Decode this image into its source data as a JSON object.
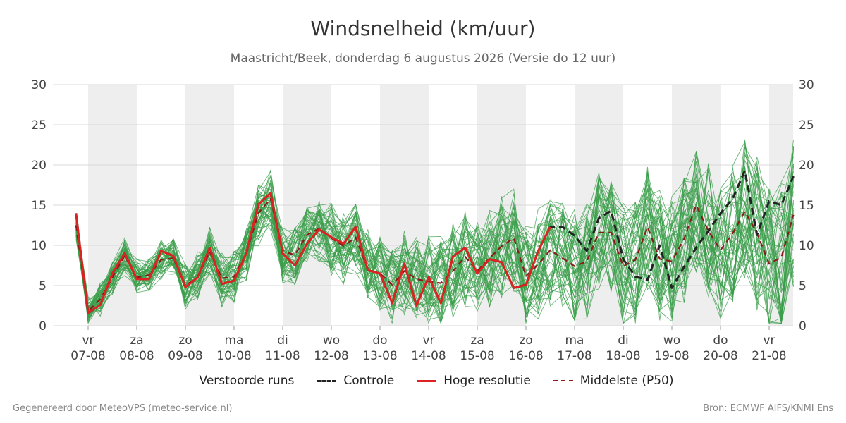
{
  "chart_data": {
    "type": "line",
    "title": "Windsnelheid (km/uur)",
    "subtitle": "Maastricht/Beek, donderdag  6 augustus 2026 (Versie do 12 uur)",
    "ylim": [
      0,
      30
    ],
    "yticks": [
      0,
      5,
      10,
      15,
      20,
      25,
      30
    ],
    "grid": true,
    "days": [
      {
        "day": "vr",
        "date": "07-08"
      },
      {
        "day": "za",
        "date": "08-08"
      },
      {
        "day": "zo",
        "date": "09-08"
      },
      {
        "day": "ma",
        "date": "10-08"
      },
      {
        "day": "di",
        "date": "11-08"
      },
      {
        "day": "wo",
        "date": "12-08"
      },
      {
        "day": "do",
        "date": "13-08"
      },
      {
        "day": "vr",
        "date": "14-08"
      },
      {
        "day": "za",
        "date": "15-08"
      },
      {
        "day": "zo",
        "date": "16-08"
      },
      {
        "day": "ma",
        "date": "17-08"
      },
      {
        "day": "di",
        "date": "18-08"
      },
      {
        "day": "wo",
        "date": "19-08"
      },
      {
        "day": "do",
        "date": "20-08"
      },
      {
        "day": "vr",
        "date": "21-08"
      }
    ],
    "series": [
      {
        "name": "Hoge resolutie",
        "color": "#dd2222",
        "dash": "none",
        "x_days": [
          -0.25,
          -0.0,
          0.25,
          0.5,
          0.75,
          1.0,
          1.25,
          1.5,
          1.75,
          2.0,
          2.25,
          2.5,
          2.75,
          3.0,
          3.25,
          3.5,
          3.75,
          4.0,
          4.25,
          4.5,
          4.75,
          5.0,
          5.25,
          5.5,
          5.75,
          6.0,
          6.25,
          6.5,
          6.75,
          7.0,
          7.25,
          7.5,
          7.75,
          8.0,
          8.25,
          8.5,
          8.75,
          9.0,
          9.25,
          9.5
        ],
        "values": [
          14,
          1.6,
          2.6,
          6.5,
          9,
          5.8,
          5.8,
          9.3,
          8.7,
          4.8,
          6,
          9.7,
          5.2,
          5.6,
          9,
          15.1,
          16.5,
          9,
          7.5,
          10.2,
          12,
          11,
          10.2,
          12.3,
          6.9,
          6.5,
          2.8,
          7.7,
          2.5,
          6.1,
          2.8,
          8.6,
          9.7,
          6.5,
          8.3,
          7.9,
          4.7,
          5.1,
          9.3,
          12.3
        ]
      },
      {
        "name": "Controle",
        "color": "#222222",
        "dash": "10,6",
        "x_days": [
          -0.25,
          -0.0,
          0.25,
          0.5,
          0.75,
          1.0,
          1.25,
          1.5,
          1.75,
          2.0,
          2.25,
          2.5,
          2.75,
          3.0,
          3.25,
          3.5,
          3.75,
          4.0,
          4.25,
          4.5,
          4.75,
          5.0,
          5.25,
          5.5,
          5.75,
          6.0,
          6.25,
          6.5,
          6.75,
          7.0,
          7.25,
          7.5,
          7.75,
          8.0,
          8.25,
          8.5,
          8.75,
          9.0,
          9.25,
          9.5,
          9.75,
          10.0,
          10.25,
          10.5,
          10.75,
          11.0,
          11.25,
          11.5,
          11.75,
          12.0,
          12.25,
          12.5,
          12.75,
          13.0,
          13.25,
          13.5,
          13.75,
          14.0,
          14.25,
          14.5
        ],
        "values": [
          14,
          1.6,
          2.6,
          6.5,
          9,
          5.8,
          5.8,
          9.3,
          8.7,
          4.8,
          6,
          9.7,
          5.2,
          5.6,
          9,
          15.1,
          16.5,
          9,
          7.5,
          10.2,
          12,
          11,
          10.2,
          12.3,
          6.9,
          6.5,
          2.8,
          7.7,
          2.5,
          6.1,
          2.8,
          8.6,
          9.7,
          6.5,
          8.3,
          7.9,
          4.7,
          5.1,
          9.3,
          12.3,
          12.3,
          11.2,
          9.3,
          13.4,
          14.3,
          8.3,
          6.1,
          5.7,
          10.0,
          4.7,
          7.3,
          9.7,
          11.8,
          14,
          15.8,
          19.3,
          11.3,
          15.5,
          15.0,
          18.6
        ]
      },
      {
        "name": "Middelste (P50)",
        "color": "#8b1a1a",
        "dash": "8,6",
        "x_days": [
          -0.25,
          -0.0,
          0.25,
          0.5,
          0.75,
          1.0,
          1.25,
          1.5,
          1.75,
          2.0,
          2.25,
          2.5,
          2.75,
          3.0,
          3.25,
          3.5,
          3.75,
          4.0,
          4.25,
          4.5,
          4.75,
          5.0,
          5.25,
          5.5,
          5.75,
          6.0,
          6.25,
          6.5,
          6.75,
          7.0,
          7.25,
          7.5,
          7.75,
          8.0,
          8.25,
          8.5,
          8.75,
          9.0,
          9.25,
          9.5,
          9.75,
          10.0,
          10.25,
          10.5,
          10.75,
          11.0,
          11.25,
          11.5,
          11.75,
          12.0,
          12.25,
          12.5,
          12.75,
          13.0,
          13.25,
          13.5,
          13.75,
          14.0,
          14.25,
          14.5
        ],
        "values": [
          12.5,
          1.8,
          3.3,
          6.0,
          8.7,
          6.0,
          6.3,
          8.2,
          8.4,
          5.0,
          6.0,
          9.2,
          5.9,
          6.1,
          9.0,
          14.0,
          15.8,
          9.3,
          8.8,
          11.3,
          12.1,
          10.9,
          9.9,
          11.0,
          7.0,
          6.5,
          5.1,
          6.8,
          5.8,
          5.5,
          5.3,
          6.8,
          8.6,
          6.8,
          8.4,
          9.9,
          10.9,
          6.2,
          7.6,
          9.4,
          8.4,
          7.4,
          8.0,
          11.6,
          11.6,
          7.4,
          8.2,
          12.3,
          8.3,
          8.0,
          10.8,
          15.0,
          11.8,
          9.4,
          11.5,
          14.2,
          11.5,
          7.7,
          8.5,
          13.8
        ]
      }
    ]
  },
  "legend": {
    "perturbed": "Verstoorde runs",
    "control": "Controle",
    "hires": "Hoge resolutie",
    "median": "Middelste (P50)"
  },
  "colors": {
    "perturbed": "#3a9e4a",
    "control": "#222222",
    "hires": "#dd2222",
    "median": "#8b1a1a",
    "band": "#eeeeee"
  },
  "footer": {
    "left": "Gegenereerd door MeteoVPS (meteo-service.nl)",
    "right": "Bron: ECMWF AIFS/KNMI Ens"
  }
}
